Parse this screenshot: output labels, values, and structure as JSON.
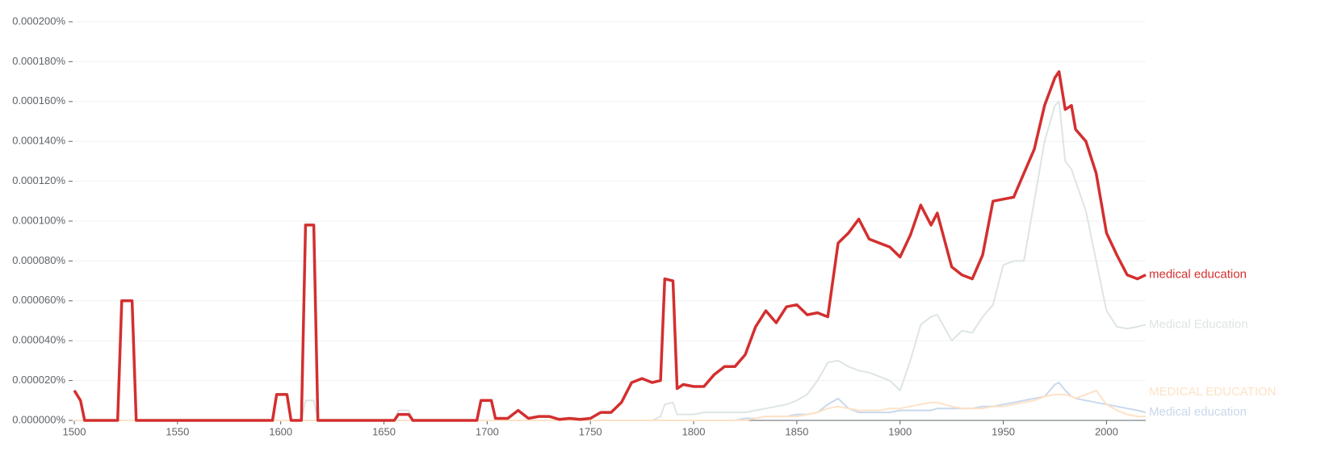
{
  "chart_data": {
    "type": "line",
    "x": [
      1500,
      1503,
      1505,
      1521,
      1523,
      1528,
      1530,
      1596,
      1598,
      1603,
      1605,
      1610,
      1612,
      1616,
      1618,
      1655,
      1657,
      1662,
      1664,
      1695,
      1697,
      1702,
      1704,
      1710,
      1715,
      1720,
      1725,
      1730,
      1735,
      1740,
      1745,
      1750,
      1755,
      1760,
      1765,
      1770,
      1775,
      1780,
      1784,
      1786,
      1790,
      1792,
      1795,
      1800,
      1805,
      1810,
      1815,
      1820,
      1825,
      1830,
      1835,
      1840,
      1845,
      1850,
      1855,
      1860,
      1865,
      1870,
      1875,
      1880,
      1885,
      1890,
      1895,
      1900,
      1905,
      1910,
      1915,
      1918,
      1925,
      1930,
      1935,
      1940,
      1945,
      1950,
      1955,
      1960,
      1965,
      1970,
      1975,
      1977,
      1980,
      1983,
      1985,
      1990,
      1995,
      2000,
      2005,
      2010,
      2015,
      2019
    ],
    "series": [
      {
        "name": "Medical Education",
        "color": "#dde5e2",
        "width": 2,
        "values": [
          0,
          0,
          0,
          0,
          0,
          0,
          0,
          0,
          0,
          0,
          0,
          0,
          1e-05,
          1e-05,
          0,
          0,
          5e-06,
          5e-06,
          0,
          0,
          0,
          0,
          0,
          0,
          0,
          0,
          0,
          0,
          0,
          0,
          0,
          0,
          0,
          0,
          0,
          0,
          0,
          0,
          2e-06,
          8e-06,
          9e-06,
          3e-06,
          3e-06,
          3e-06,
          4e-06,
          4e-06,
          4e-06,
          4e-06,
          4e-06,
          5e-06,
          6e-06,
          7e-06,
          8e-06,
          1e-05,
          1.3e-05,
          2e-05,
          2.9e-05,
          3e-05,
          2.7e-05,
          2.5e-05,
          2.4e-05,
          2.2e-05,
          2e-05,
          1.5e-05,
          3e-05,
          4.8e-05,
          5.2e-05,
          5.3e-05,
          4e-05,
          4.5e-05,
          4.4e-05,
          5.2e-05,
          5.8e-05,
          7.8e-05,
          8e-05,
          8e-05,
          0.00011,
          0.00014,
          0.000158,
          0.00016,
          0.00013,
          0.000126,
          0.00012,
          0.000105,
          8e-05,
          5.5e-05,
          4.7e-05,
          4.6e-05,
          4.7e-05,
          4.8e-05
        ]
      },
      {
        "name": "Medical education",
        "color": "#c9d8ec",
        "width": 2,
        "values": [
          0,
          0,
          0,
          0,
          0,
          0,
          0,
          0,
          0,
          0,
          0,
          0,
          0,
          0,
          0,
          0,
          0,
          0,
          0,
          0,
          0,
          0,
          0,
          0,
          0,
          0,
          0,
          0,
          0,
          0,
          0,
          0,
          0,
          0,
          0,
          0,
          0,
          0,
          0,
          0,
          0,
          0,
          0,
          0,
          0,
          0,
          0,
          0,
          1e-06,
          1e-06,
          2e-06,
          2e-06,
          2e-06,
          3e-06,
          3e-06,
          4e-06,
          8e-06,
          1.1e-05,
          6e-06,
          4e-06,
          4e-06,
          4e-06,
          4e-06,
          5e-06,
          5e-06,
          5e-06,
          5e-06,
          6e-06,
          6e-06,
          6e-06,
          6e-06,
          7e-06,
          7e-06,
          8e-06,
          9e-06,
          1e-05,
          1.1e-05,
          1.2e-05,
          1.8e-05,
          1.9e-05,
          1.5e-05,
          1.2e-05,
          1.1e-05,
          1e-05,
          9e-06,
          8e-06,
          7e-06,
          6e-06,
          5e-06,
          4e-06
        ]
      },
      {
        "name": "MEDICAL EDUCATION",
        "color": "#fde2c6",
        "width": 2,
        "values": [
          0,
          0,
          0,
          0,
          0,
          0,
          0,
          0,
          0,
          0,
          0,
          0,
          0,
          0,
          0,
          0,
          0,
          0,
          0,
          0,
          0,
          0,
          0,
          0,
          0,
          0,
          0,
          0,
          0,
          0,
          0,
          0,
          0,
          0,
          0,
          0,
          0,
          0,
          0,
          0,
          0,
          0,
          0,
          0,
          0,
          0,
          0,
          0,
          0,
          1e-06,
          2e-06,
          2e-06,
          2e-06,
          2e-06,
          3e-06,
          4e-06,
          6e-06,
          7e-06,
          6e-06,
          5e-06,
          5e-06,
          5e-06,
          6e-06,
          6e-06,
          7e-06,
          8e-06,
          9e-06,
          9e-06,
          7e-06,
          6e-06,
          6e-06,
          6e-06,
          7e-06,
          7e-06,
          8e-06,
          9e-06,
          1e-05,
          1.2e-05,
          1.3e-05,
          1.3e-05,
          1.3e-05,
          1.2e-05,
          1.1e-05,
          1.3e-05,
          1.5e-05,
          8e-06,
          5e-06,
          3e-06,
          2e-06,
          2e-06
        ]
      },
      {
        "name": "medical education",
        "color": "#d32f2f",
        "width": 3.5,
        "values": [
          1.5e-05,
          1e-05,
          0,
          0,
          6e-05,
          6e-05,
          0,
          0,
          1.3e-05,
          1.3e-05,
          0,
          0,
          9.8e-05,
          9.8e-05,
          0,
          0,
          3e-06,
          3e-06,
          0,
          0,
          1e-05,
          1e-05,
          1e-06,
          1e-06,
          5e-06,
          1e-06,
          2e-06,
          2e-06,
          5e-07,
          1e-06,
          5e-07,
          1e-06,
          4e-06,
          4e-06,
          9e-06,
          1.9e-05,
          2.1e-05,
          1.9e-05,
          2e-05,
          7.1e-05,
          7e-05,
          1.6e-05,
          1.8e-05,
          1.7e-05,
          1.7e-05,
          2.3e-05,
          2.7e-05,
          2.7e-05,
          3.3e-05,
          4.7e-05,
          5.5e-05,
          4.9e-05,
          5.7e-05,
          5.8e-05,
          5.3e-05,
          5.4e-05,
          5.2e-05,
          8.9e-05,
          9.4e-05,
          0.000101,
          9.1e-05,
          8.9e-05,
          8.7e-05,
          8.2e-05,
          9.3e-05,
          0.000108,
          9.8e-05,
          0.000104,
          7.7e-05,
          7.3e-05,
          7.1e-05,
          8.3e-05,
          0.00011,
          0.000111,
          0.000112,
          0.000124,
          0.000136,
          0.000158,
          0.000172,
          0.000175,
          0.000156,
          0.000158,
          0.000146,
          0.00014,
          0.000124,
          9.4e-05,
          8.3e-05,
          7.3e-05,
          7.1e-05,
          7.3e-05
        ]
      }
    ],
    "xlim": [
      1500,
      2019
    ],
    "xticks": [
      1500,
      1550,
      1600,
      1650,
      1700,
      1750,
      1800,
      1850,
      1900,
      1950,
      2000
    ],
    "ylim": [
      0,
      0.0002
    ],
    "yticks": [
      {
        "value": 0,
        "label": "0.000000%"
      },
      {
        "value": 2e-05,
        "label": "0.000020%"
      },
      {
        "value": 4e-05,
        "label": "0.000040%"
      },
      {
        "value": 6e-05,
        "label": "0.000060%"
      },
      {
        "value": 8e-05,
        "label": "0.000080%"
      },
      {
        "value": 0.0001,
        "label": "0.000100%"
      },
      {
        "value": 0.00012,
        "label": "0.000120%"
      },
      {
        "value": 0.00014,
        "label": "0.000140%"
      },
      {
        "value": 0.00016,
        "label": "0.000160%"
      },
      {
        "value": 0.00018,
        "label": "0.000180%"
      },
      {
        "value": 0.0002,
        "label": "0.000200%"
      }
    ],
    "grid": true
  }
}
